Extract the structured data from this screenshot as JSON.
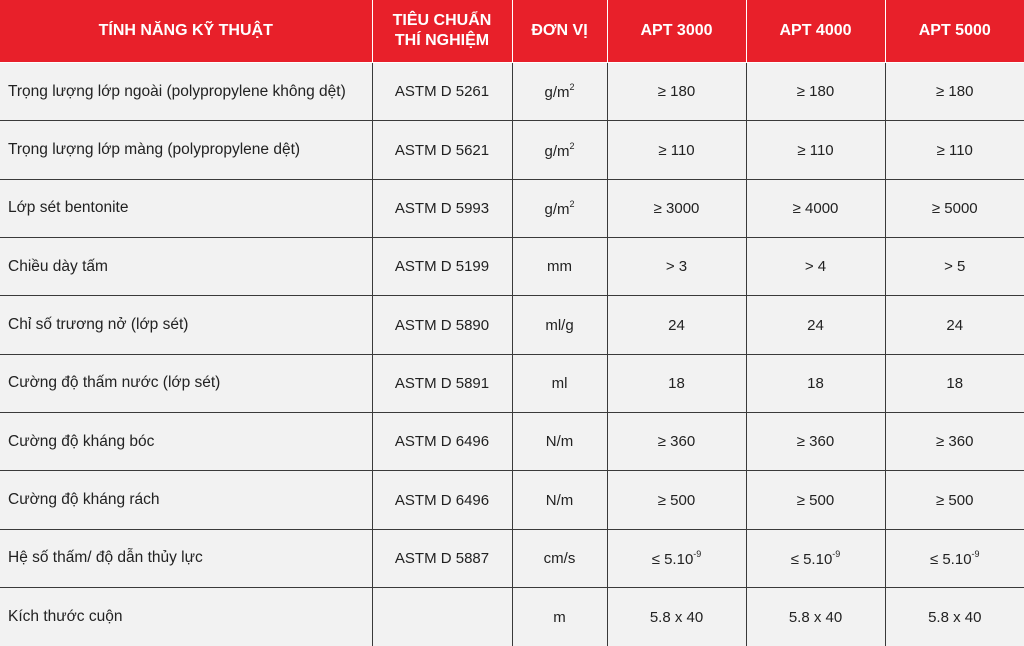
{
  "headers": {
    "feature": "TÍNH NĂNG KỸ THUẬT",
    "standard_line1": "TIÊU CHUẨN",
    "standard_line2": "THÍ NGHIỆM",
    "unit": "ĐƠN VỊ",
    "apt3000": "APT 3000",
    "apt4000": "APT 4000",
    "apt5000": "APT 5000"
  },
  "rows": [
    {
      "feature": "Trọng lượng lớp ngoài (polypropylene không dệt)",
      "standard": "ASTM D 5261",
      "unit": "g/m",
      "unit_sup": "2",
      "apt3000": "≥ 180",
      "apt4000": "≥ 180",
      "apt5000": "≥ 180"
    },
    {
      "feature": "Trọng lượng lớp màng (polypropylene dệt)",
      "standard": "ASTM D 5621",
      "unit": "g/m",
      "unit_sup": "2",
      "apt3000": "≥ 110",
      "apt4000": "≥ 110",
      "apt5000": "≥ 110"
    },
    {
      "feature": "Lớp sét bentonite",
      "standard": "ASTM D 5993",
      "unit": "g/m",
      "unit_sup": "2",
      "apt3000": "≥ 3000",
      "apt4000": "≥ 4000",
      "apt5000": "≥ 5000"
    },
    {
      "feature": "Chiều dày tấm",
      "standard": "ASTM D 5199",
      "unit": "mm",
      "apt3000": "> 3",
      "apt4000": "> 4",
      "apt5000": "> 5"
    },
    {
      "feature": "Chỉ số trương nở (lớp sét)",
      "standard": "ASTM D 5890",
      "unit": "ml/g",
      "apt3000": "24",
      "apt4000": "24",
      "apt5000": "24"
    },
    {
      "feature": "Cường độ thấm nước (lớp sét)",
      "standard": "ASTM D 5891",
      "unit": "ml",
      "apt3000": "18",
      "apt4000": "18",
      "apt5000": "18"
    },
    {
      "feature": "Cường độ kháng bóc",
      "standard": "ASTM D 6496",
      "unit": "N/m",
      "apt3000": "≥ 360",
      "apt4000": "≥ 360",
      "apt5000": "≥ 360"
    },
    {
      "feature": "Cường độ kháng rách",
      "standard": "ASTM D 6496",
      "unit": "N/m",
      "apt3000": "≥ 500",
      "apt4000": "≥ 500",
      "apt5000": "≥ 500"
    },
    {
      "feature": "Hệ số thấm/ độ dẫn thủy lực",
      "standard": "ASTM D 5887",
      "unit": "cm/s",
      "apt3000": "≤ 5.10",
      "apt3000_sup": "-9",
      "apt4000": "≤ 5.10",
      "apt4000_sup": "-9",
      "apt5000": "≤ 5.10",
      "apt5000_sup": "-9"
    },
    {
      "feature": "Kích thước cuộn",
      "standard": "",
      "unit": "m",
      "apt3000": "5.8 x 40",
      "apt4000": "5.8 x 40",
      "apt5000": "5.8 x 40"
    }
  ]
}
